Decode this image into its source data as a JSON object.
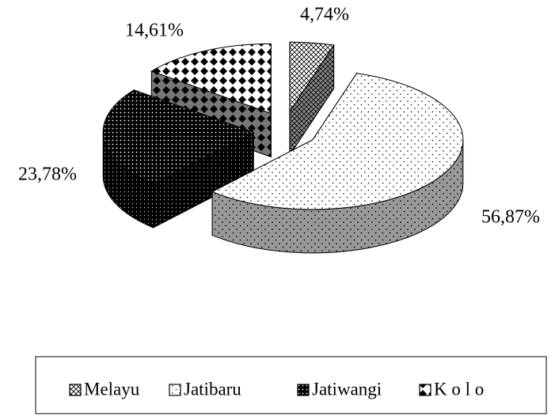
{
  "chart_data": {
    "type": "pie",
    "categories": [
      "Melayu",
      "Jatibaru",
      "Jatiwangi",
      "K o l o"
    ],
    "values": [
      4.74,
      56.87,
      23.78,
      14.61
    ],
    "value_labels": [
      "4,74%",
      "56,87%",
      "23,78%",
      "14,61%"
    ],
    "legend": "bottom"
  }
}
